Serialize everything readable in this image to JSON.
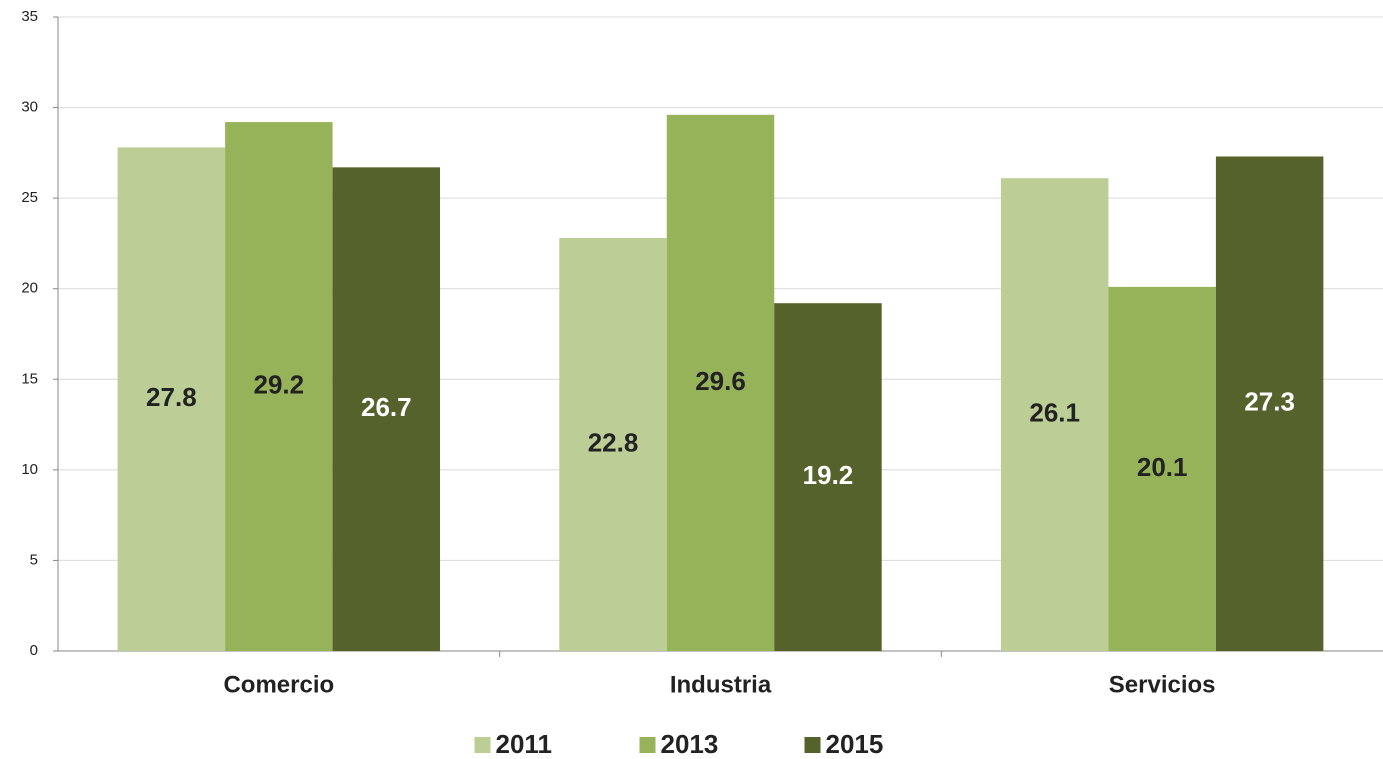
{
  "chart_data": {
    "type": "bar",
    "categories": [
      "Comercio",
      "Industria",
      "Servicios"
    ],
    "series": [
      {
        "name": "2011",
        "color": "#bccd95",
        "label_color": "#222222",
        "values": [
          27.8,
          22.8,
          26.1
        ]
      },
      {
        "name": "2013",
        "color": "#97b35a",
        "label_color": "#222222",
        "values": [
          29.2,
          29.6,
          20.1
        ]
      },
      {
        "name": "2015",
        "color": "#56622b",
        "label_color": "#ffffff",
        "values": [
          26.7,
          19.2,
          27.3
        ]
      }
    ],
    "ylim": [
      0,
      35
    ],
    "yticks": [
      0,
      5,
      10,
      15,
      20,
      25,
      30,
      35
    ],
    "grid": true,
    "legend": "bottom"
  }
}
